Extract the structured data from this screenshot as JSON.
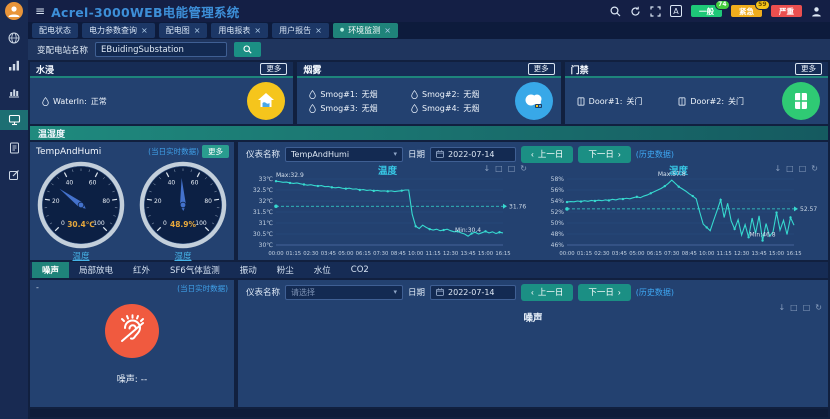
{
  "app": {
    "title": "Acrel-3000WEB电能管理系统"
  },
  "icons": {
    "hamburger": "≡",
    "close": "×",
    "active_dot": "●",
    "translate": "A",
    "chevron": "▾",
    "prev_arrow": "‹",
    "next_arrow": "›",
    "toolbox": [
      "↓",
      "□",
      "□",
      "↻"
    ]
  },
  "header": {
    "alarms": [
      {
        "label": "一般",
        "count": "74"
      },
      {
        "label": "紧急",
        "count": "59"
      },
      {
        "label": "严重",
        "count": ""
      }
    ]
  },
  "tabs": [
    {
      "label": "配电状态"
    },
    {
      "label": "电力参数查询"
    },
    {
      "label": "配电图"
    },
    {
      "label": "用电报表"
    },
    {
      "label": "用户报告"
    },
    {
      "label": "环境监测"
    }
  ],
  "search": {
    "label": "变配电站名称",
    "value": "EBuidingSubstation"
  },
  "panels": {
    "water": {
      "title": "水浸",
      "more": "更多",
      "items": [
        {
          "name": "WaterIn:",
          "value": "正常"
        }
      ]
    },
    "smoke": {
      "title": "烟雾",
      "more": "更多",
      "items": [
        {
          "name": "Smog#1:",
          "value": "无烟"
        },
        {
          "name": "Smog#2:",
          "value": "无烟"
        },
        {
          "name": "Smog#3:",
          "value": "无烟"
        },
        {
          "name": "Smog#4:",
          "value": "无烟"
        }
      ]
    },
    "door": {
      "title": "门禁",
      "more": "更多",
      "items": [
        {
          "name": "Door#1:",
          "value": "关门"
        },
        {
          "name": "Door#2:",
          "value": "关门"
        }
      ]
    }
  },
  "temphumi": {
    "section_title": "温湿度",
    "device_name": "TempAndHumi",
    "realtime_label": "(当日实时数据)",
    "more": "更多",
    "gauge_ticks": [
      0,
      20,
      40,
      60,
      80,
      100
    ],
    "gauges": [
      {
        "value": 30.4,
        "display": "30.4℃",
        "label": "温度"
      },
      {
        "value": 48.9,
        "display": "48.9%",
        "label": "湿度"
      }
    ],
    "controls": {
      "meter_label": "仪表名称",
      "meter_value": "TempAndHumi",
      "date_label": "日期",
      "date_value": "2022-07-14",
      "prev": "上一日",
      "next": "下一日",
      "history": "(历史数据)"
    }
  },
  "noise": {
    "tabs": [
      "噪声",
      "局部放电",
      "红外",
      "SF6气体监测",
      "振动",
      "粉尘",
      "水位",
      "CO2"
    ],
    "top_left_dash": "-",
    "realtime_label": "(当日实时数据)",
    "reading": "噪声: --",
    "chart_title": "噪声",
    "controls": {
      "meter_label": "仪表名称",
      "meter_value": "请选择",
      "date_label": "日期",
      "date_value": "2022-07-14",
      "prev": "上一日",
      "next": "下一日",
      "history": "(历史数据)"
    }
  },
  "chart_data": [
    {
      "type": "line",
      "title": "温度",
      "color": "#36d9cf",
      "x_ticks": [
        "00:00",
        "01:15",
        "02:30",
        "03:45",
        "05:00",
        "06:15",
        "07:30",
        "08:45",
        "10:00",
        "11:15",
        "12:30",
        "13:45",
        "15:00",
        "16:15"
      ],
      "y_ticks": [
        "30℃",
        "30.5℃",
        "31℃",
        "31.5℃",
        "32℃",
        "32.5℃",
        "33℃"
      ],
      "ylim": [
        30,
        33
      ],
      "avg": 31.76,
      "avg_label": "31.76",
      "max_label": "Max:32.9",
      "max_index": 0,
      "min_label": "Min:30.4",
      "min_index": 55,
      "values": [
        32.9,
        32.88,
        32.85,
        32.86,
        32.82,
        32.8,
        32.82,
        32.78,
        32.75,
        32.72,
        32.74,
        32.7,
        32.68,
        32.7,
        32.65,
        32.66,
        32.62,
        32.6,
        32.62,
        32.58,
        32.56,
        32.58,
        32.54,
        32.55,
        32.5,
        32.52,
        32.48,
        32.5,
        32.46,
        32.48,
        32.45,
        32.46,
        32.44,
        32.46,
        32.43,
        32.45,
        32.47,
        32.5,
        32.5,
        31.4,
        30.85,
        30.75,
        30.9,
        30.8,
        30.72,
        30.68,
        30.72,
        30.65,
        30.68,
        30.72,
        30.65,
        30.6,
        30.62,
        30.55,
        30.5,
        30.4,
        30.52,
        30.58,
        30.5,
        30.56,
        30.62,
        30.55,
        30.6,
        30.52,
        30.58,
        30.55
      ]
    },
    {
      "type": "line",
      "title": "湿度",
      "color": "#36d9cf",
      "x_ticks": [
        "00:00",
        "01:15",
        "02:30",
        "03:45",
        "05:00",
        "06:15",
        "07:30",
        "08:45",
        "10:00",
        "11:15",
        "12:30",
        "13:45",
        "15:00",
        "16:15"
      ],
      "y_ticks": [
        "46%",
        "48%",
        "50%",
        "52%",
        "54%",
        "56%",
        "58%"
      ],
      "ylim": [
        46,
        58
      ],
      "avg": 52.57,
      "avg_label": "52.57",
      "max_label": "Max:57.8",
      "max_index": 30,
      "min_label": "Min:46.8",
      "min_index": 56,
      "values": [
        53.8,
        53.9,
        53.85,
        54.0,
        53.9,
        54.05,
        53.95,
        54.1,
        54.0,
        54.15,
        54.05,
        54.2,
        54.1,
        54.3,
        54.2,
        54.4,
        54.35,
        54.5,
        54.4,
        54.6,
        54.75,
        54.6,
        54.9,
        55.1,
        55.4,
        55.7,
        56.0,
        56.3,
        56.7,
        57.2,
        57.8,
        57.2,
        56.6,
        56.2,
        55.8,
        55.3,
        54.9,
        54.4,
        52.0,
        49.8,
        49.2,
        48.6,
        50.5,
        52.3,
        54.2,
        51.0,
        53.6,
        50.4,
        48.9,
        50.6,
        47.8,
        49.7,
        47.4,
        50.9,
        48.1,
        51.3,
        46.8,
        49.9,
        47.6,
        48.4,
        51.9,
        48.7,
        50.5,
        47.9,
        51.0,
        49.6
      ]
    }
  ]
}
